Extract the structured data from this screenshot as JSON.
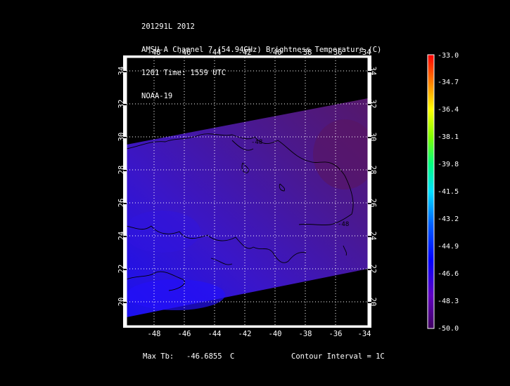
{
  "header": {
    "line1": "201291L 2012",
    "line2": "AMSU-A Channel 7 (54.94GHz) Brightness Temperature (C)",
    "line3": "1201 Time: 1559 UTC",
    "line4": "NOAA-19"
  },
  "map": {
    "lon_ticks": [
      "-48",
      "-46",
      "-44",
      "-42",
      "-40",
      "-38",
      "-36",
      "-34"
    ],
    "lat_ticks": [
      "20",
      "22",
      "24",
      "26",
      "28",
      "30",
      "32",
      "34"
    ],
    "contour_labels": [
      "-48",
      "-48"
    ]
  },
  "colorbar": {
    "labels": [
      "-33.0",
      "-34.7",
      "-36.4",
      "-38.1",
      "-39.8",
      "-41.5",
      "-43.2",
      "-44.9",
      "-46.6",
      "-48.3",
      "-50.0"
    ],
    "colors": [
      "#ff0000",
      "#ff8000",
      "#ffff00",
      "#00ff00",
      "#00ffff",
      "#0000ff",
      "#8000ff",
      "#400060"
    ]
  },
  "footer": {
    "max_label": "Max Tb:",
    "max_value": "-46.6855",
    "max_unit": "C",
    "contour_interval": "Contour Interval = 1C"
  }
}
